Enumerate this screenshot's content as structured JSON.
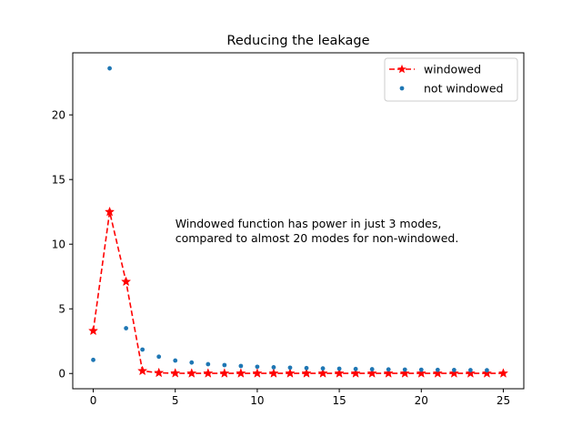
{
  "chart_data": {
    "type": "line",
    "title": "Reducing the leakage",
    "xlabel": "",
    "ylabel": "",
    "xlim": [
      -1.25,
      26.25
    ],
    "ylim": [
      -1.18,
      24.8
    ],
    "xticks": [
      0,
      5,
      10,
      15,
      20,
      25
    ],
    "yticks": [
      0,
      5,
      10,
      15,
      20
    ],
    "grid": false,
    "legend_position": "upper-right",
    "annotation": {
      "lines": [
        "Windowed function has power in just 3 modes,",
        "compared to almost 20 modes for non-windowed."
      ],
      "x": 5,
      "y": 11
    },
    "series": [
      {
        "name": "windowed",
        "style": "dashed-line-star-markers",
        "color": "#ff0000",
        "x": [
          0,
          1,
          2,
          3,
          4,
          5,
          6,
          7,
          8,
          9,
          10,
          11,
          12,
          13,
          14,
          15,
          16,
          17,
          18,
          19,
          20,
          21,
          22,
          23,
          24,
          25
        ],
        "y": [
          3.3,
          12.5,
          7.1,
          0.2,
          0.05,
          0.02,
          0.01,
          0.01,
          0.01,
          0.01,
          0.01,
          0.01,
          0.01,
          0.01,
          0.01,
          0.01,
          0.01,
          0.01,
          0.01,
          0.01,
          0.01,
          0.01,
          0.01,
          0.01,
          0.01,
          0.01
        ]
      },
      {
        "name": "not windowed",
        "style": "dot-markers",
        "color": "#1f77b4",
        "x": [
          0,
          1,
          2,
          3,
          4,
          5,
          6,
          7,
          8,
          9,
          10,
          11,
          12,
          13,
          14,
          15,
          16,
          17,
          18,
          19,
          20,
          21,
          22,
          23,
          24
        ],
        "y": [
          1.05,
          23.6,
          3.5,
          1.85,
          1.3,
          1.0,
          0.85,
          0.72,
          0.65,
          0.58,
          0.52,
          0.48,
          0.45,
          0.42,
          0.39,
          0.37,
          0.35,
          0.33,
          0.31,
          0.3,
          0.29,
          0.28,
          0.27,
          0.26,
          0.25
        ]
      }
    ]
  }
}
